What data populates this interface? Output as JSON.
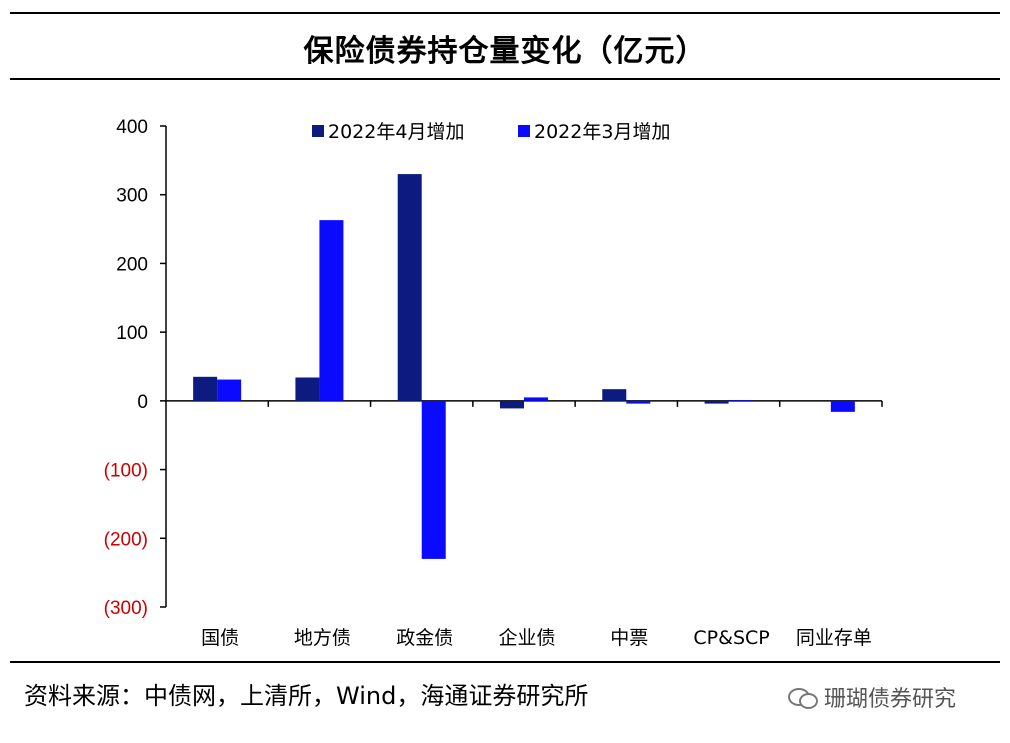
{
  "title": "保险债券持仓量变化（亿元）",
  "source": "资料来源：中债网，上清所，Wind，海通证券研究所",
  "watermark": "珊瑚债券研究",
  "watermark_icon": "wechat-icon",
  "chart_data": {
    "type": "bar",
    "categories": [
      "国债",
      "地方债",
      "政金债",
      "企业债",
      "中票",
      "CP&SCP",
      "同业存单"
    ],
    "series": [
      {
        "name": "2022年4月增加",
        "color": "#0d1a80",
        "values": [
          35,
          34,
          330,
          -11,
          17,
          -4,
          0
        ]
      },
      {
        "name": "2022年3月增加",
        "color": "#0a0aff",
        "values": [
          31,
          263,
          -230,
          5,
          -4,
          1,
          -16
        ]
      }
    ],
    "ylim": [
      -300,
      400
    ],
    "yticks": [
      400,
      300,
      200,
      100,
      0,
      -100,
      -200,
      -300
    ],
    "ytick_labels": [
      "400",
      "300",
      "200",
      "100",
      "0",
      "(100)",
      "(200)",
      "(300)"
    ],
    "negative_tick_color": "#cc0000",
    "legend_position": "top-center",
    "grid": false,
    "xlabel": "",
    "ylabel": ""
  }
}
